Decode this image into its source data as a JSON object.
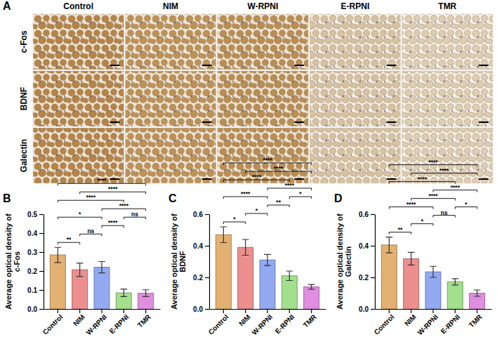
{
  "panel_a": {
    "panel_label": "A",
    "columns": [
      "Control",
      "NIM",
      "W-RPNI",
      "E-RPNI",
      "TMR"
    ],
    "rows": [
      "c-Fos",
      "BDNF",
      "Galectin"
    ]
  },
  "chart_data": [
    {
      "type": "bar",
      "panel_label": "B",
      "y_label": "Average optical density of c-Fos",
      "categories": [
        "Control",
        "NIM",
        "W-RPNI",
        "E-RPNI",
        "TMR"
      ],
      "values": [
        0.285,
        0.207,
        0.22,
        0.085,
        0.083
      ],
      "errors": [
        0.04,
        0.035,
        0.03,
        0.02,
        0.018
      ],
      "colors": [
        "#e3b171",
        "#eb8f8f",
        "#93a9f2",
        "#a2e08e",
        "#e08ee0"
      ],
      "ylim": [
        0,
        0.5
      ],
      "yticks": [
        {
          "value": 0,
          "label": "0.0"
        },
        0.1,
        0.2,
        0.3,
        0.4,
        0.5
      ],
      "annotations": [
        {
          "between": [
            "Control",
            "NIM"
          ],
          "text": "**"
        },
        {
          "between": [
            "NIM",
            "W-RPNI"
          ],
          "text": "ns"
        },
        {
          "between": [
            "E-RPNI",
            "TMR"
          ],
          "text": "ns"
        },
        {
          "between": [
            "Control",
            "W-RPNI"
          ],
          "text": "*"
        },
        {
          "between": [
            "W-RPNI",
            "E-RPNI"
          ],
          "text": "****"
        },
        {
          "between": [
            "W-RPNI",
            "TMR"
          ],
          "text": "****"
        },
        {
          "between": [
            "NIM",
            "TMR"
          ],
          "text": "****"
        },
        {
          "between": [
            "Control",
            "E-RPNI"
          ],
          "text": "****"
        },
        {
          "between": [
            "Control",
            "TMR"
          ],
          "text": "****"
        }
      ]
    },
    {
      "type": "bar",
      "panel_label": "C",
      "y_label": "Average optical density of BDNF",
      "categories": [
        "Control",
        "NIM",
        "W-RPNI",
        "E-RPNI",
        "TMR"
      ],
      "values": [
        0.47,
        0.39,
        0.31,
        0.21,
        0.14
      ],
      "errors": [
        0.05,
        0.05,
        0.035,
        0.03,
        0.015
      ],
      "colors": [
        "#e3b171",
        "#eb8f8f",
        "#93a9f2",
        "#a2e08e",
        "#e08ee0"
      ],
      "ylim": [
        0,
        0.6
      ],
      "yticks": [
        {
          "value": 0,
          "label": "0.0"
        },
        0.2,
        0.4,
        0.6
      ],
      "annotations": [
        {
          "between": [
            "Control",
            "NIM"
          ],
          "text": "*"
        },
        {
          "between": [
            "NIM",
            "W-RPNI"
          ],
          "text": "*"
        },
        {
          "between": [
            "W-RPNI",
            "E-RPNI"
          ],
          "text": "**"
        },
        {
          "between": [
            "E-RPNI",
            "TMR"
          ],
          "text": "*"
        },
        {
          "between": [
            "Control",
            "W-RPNI"
          ],
          "text": "****"
        },
        {
          "between": [
            "W-RPNI",
            "TMR"
          ],
          "text": "****"
        },
        {
          "between": [
            "NIM",
            "TMR"
          ],
          "text": "****"
        },
        {
          "between": [
            "Control",
            "E-RPNI"
          ],
          "text": "****"
        },
        {
          "between": [
            "Control",
            "TMR"
          ],
          "text": "****"
        }
      ]
    },
    {
      "type": "bar",
      "panel_label": "D",
      "y_label": "Average optical density of Galectin",
      "categories": [
        "Control",
        "NIM",
        "W-RPNI",
        "E-RPNI",
        "TMR"
      ],
      "values": [
        0.405,
        0.318,
        0.235,
        0.172,
        0.1
      ],
      "errors": [
        0.05,
        0.04,
        0.035,
        0.02,
        0.02
      ],
      "colors": [
        "#e3b171",
        "#eb8f8f",
        "#93a9f2",
        "#a2e08e",
        "#e08ee0"
      ],
      "ylim": [
        0,
        0.6
      ],
      "yticks": [
        {
          "value": 0,
          "label": "0.0"
        },
        0.2,
        0.4,
        0.6
      ],
      "annotations": [
        {
          "between": [
            "Control",
            "NIM"
          ],
          "text": "**"
        },
        {
          "between": [
            "NIM",
            "W-RPNI"
          ],
          "text": "*"
        },
        {
          "between": [
            "W-RPNI",
            "E-RPNI"
          ],
          "text": "ns"
        },
        {
          "between": [
            "E-RPNI",
            "TMR"
          ],
          "text": "*"
        },
        {
          "between": [
            "Control",
            "W-RPNI"
          ],
          "text": "****"
        },
        {
          "between": [
            "NIM",
            "E-RPNI"
          ],
          "text": "****"
        },
        {
          "between": [
            "W-RPNI",
            "TMR"
          ],
          "text": "****"
        },
        {
          "between": [
            "NIM",
            "TMR"
          ],
          "text": "****"
        },
        {
          "between": [
            "Control",
            "E-RPNI"
          ],
          "text": "****"
        },
        {
          "between": [
            "Control",
            "TMR"
          ],
          "text": "****"
        }
      ]
    }
  ]
}
